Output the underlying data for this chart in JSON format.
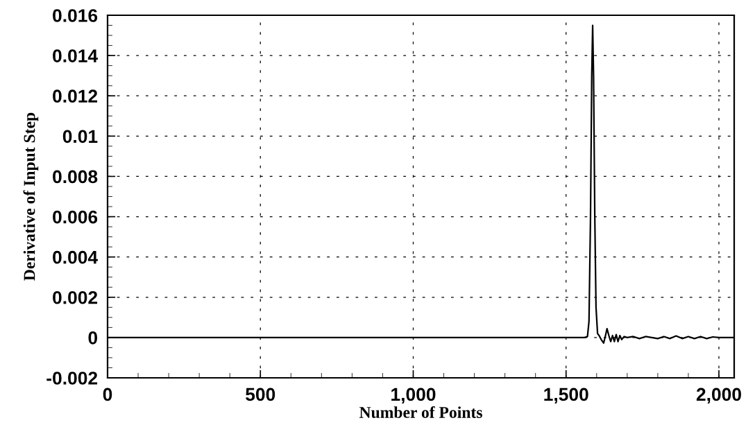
{
  "chart_data": {
    "type": "line",
    "xlabel": "Number of Points",
    "ylabel": "Derivative of Input Step",
    "x": [
      0,
      500,
      1000,
      1500,
      1560,
      1570,
      1575,
      1580,
      1584,
      1587,
      1590,
      1594,
      1598,
      1603,
      1608,
      1615,
      1623,
      1629,
      1634,
      1640,
      1646,
      1652,
      1658,
      1664,
      1670,
      1676,
      1682,
      1690,
      1700,
      1720,
      1740,
      1760,
      1780,
      1800,
      1820,
      1840,
      1860,
      1880,
      1900,
      1920,
      1940,
      1960,
      1980,
      2000,
      2050
    ],
    "values": [
      0,
      0,
      0,
      0,
      0,
      5e-05,
      0.0008,
      0.006,
      0.013,
      0.0155,
      0.013,
      0.006,
      0.0015,
      0.0002,
      0.0001,
      -0.0001,
      -0.00027,
      0.0001,
      0.00044,
      0.0001,
      -0.0002,
      0.0001,
      -0.0002,
      0.00015,
      -0.0002,
      0.0001,
      -0.0001,
      5e-05,
      0,
      5e-05,
      -5e-05,
      5e-05,
      0,
      -5e-05,
      5e-05,
      -5e-05,
      8e-05,
      -5e-05,
      5e-05,
      -5e-05,
      5e-05,
      -5e-05,
      3e-05,
      0,
      0
    ],
    "color": "#000000",
    "xlim": [
      0,
      2050
    ],
    "xticks": [
      {
        "value": 0,
        "label": "0"
      },
      {
        "value": 500,
        "label": "500"
      },
      {
        "value": 1000,
        "label": "1,000"
      },
      {
        "value": 1500,
        "label": "1,500"
      },
      {
        "value": 2000,
        "label": "2,000"
      }
    ],
    "ylim": [
      -0.002,
      0.016
    ],
    "yticks": [
      -0.002,
      0,
      0.002,
      0.004,
      0.006,
      0.008,
      0.01,
      0.012,
      0.014,
      0.016
    ],
    "grid": true,
    "legend": false,
    "marker": "none",
    "line_style": "solid"
  }
}
